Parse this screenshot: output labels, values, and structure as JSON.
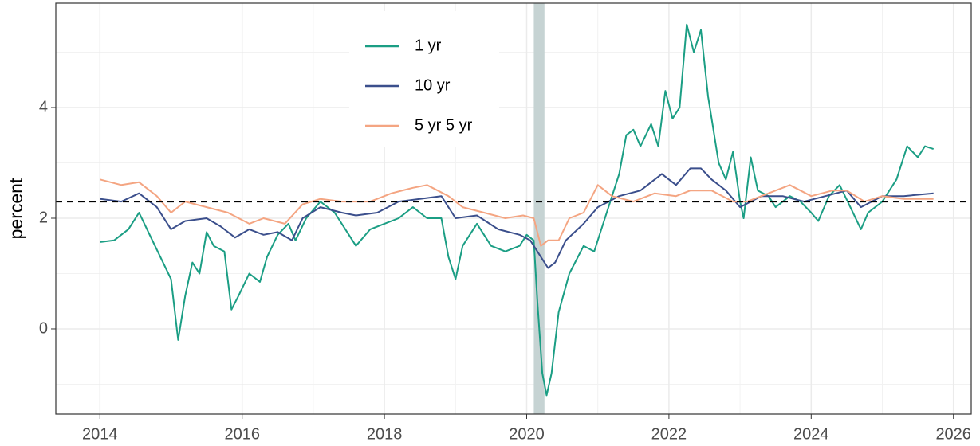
{
  "chart_data": {
    "type": "line",
    "ylabel": "percent",
    "xlim": [
      2013.38,
      2026.25
    ],
    "xticks": [
      2014,
      2016,
      2018,
      2020,
      2022,
      2024,
      2026
    ],
    "ylim": [
      -1.54,
      5.885
    ],
    "yticks": [
      0,
      2,
      4
    ],
    "grid": true,
    "legend": "top",
    "hline": 2.3,
    "hline_color": "#000000",
    "shaded_regions": [
      [
        2020.1,
        2020.25
      ]
    ],
    "shade_color": "#c6d3d3",
    "series": [
      {
        "name": "1 yr",
        "color": "#1b9e84",
        "x": [
          2014.0,
          2014.2,
          2014.4,
          2014.55,
          2014.7,
          2014.85,
          2015.0,
          2015.1,
          2015.2,
          2015.3,
          2015.4,
          2015.5,
          2015.6,
          2015.75,
          2015.85,
          2015.95,
          2016.1,
          2016.25,
          2016.35,
          2016.5,
          2016.65,
          2016.75,
          2016.9,
          2017.1,
          2017.3,
          2017.5,
          2017.6,
          2017.8,
          2018.0,
          2018.2,
          2018.4,
          2018.6,
          2018.8,
          2018.9,
          2019.0,
          2019.1,
          2019.3,
          2019.5,
          2019.7,
          2019.9,
          2020.0,
          2020.1,
          2020.15,
          2020.22,
          2020.28,
          2020.35,
          2020.45,
          2020.6,
          2020.8,
          2020.95,
          2021.1,
          2021.3,
          2021.4,
          2021.5,
          2021.6,
          2021.75,
          2021.85,
          2021.95,
          2022.05,
          2022.15,
          2022.25,
          2022.35,
          2022.45,
          2022.55,
          2022.7,
          2022.8,
          2022.9,
          2023.0,
          2023.05,
          2023.15,
          2023.25,
          2023.4,
          2023.5,
          2023.7,
          2023.85,
          2024.0,
          2024.1,
          2024.25,
          2024.4,
          2024.55,
          2024.7,
          2024.8,
          2025.0,
          2025.2,
          2025.35,
          2025.5,
          2025.6,
          2025.72
        ],
        "values": [
          1.57,
          1.6,
          1.8,
          2.1,
          1.7,
          1.3,
          0.9,
          -0.2,
          0.6,
          1.2,
          1.0,
          1.75,
          1.5,
          1.4,
          0.35,
          0.6,
          1.0,
          0.85,
          1.3,
          1.7,
          1.9,
          1.6,
          2.0,
          2.3,
          2.1,
          1.7,
          1.5,
          1.8,
          1.9,
          2.0,
          2.2,
          2.0,
          2.0,
          1.3,
          0.9,
          1.5,
          1.9,
          1.5,
          1.4,
          1.5,
          1.7,
          1.6,
          0.5,
          -0.8,
          -1.2,
          -0.8,
          0.3,
          1.0,
          1.5,
          1.4,
          2.0,
          2.8,
          3.5,
          3.6,
          3.3,
          3.7,
          3.3,
          4.3,
          3.8,
          4.0,
          5.5,
          5.0,
          5.4,
          4.2,
          3.0,
          2.7,
          3.2,
          2.3,
          2.0,
          3.1,
          2.5,
          2.4,
          2.2,
          2.4,
          2.3,
          2.1,
          1.95,
          2.4,
          2.6,
          2.2,
          1.8,
          2.1,
          2.3,
          2.7,
          3.3,
          3.1,
          3.3,
          3.25
        ]
      },
      {
        "name": "10 yr",
        "color": "#3b4f8c",
        "x": [
          2014.0,
          2014.3,
          2014.55,
          2014.8,
          2015.0,
          2015.2,
          2015.5,
          2015.7,
          2015.9,
          2016.1,
          2016.3,
          2016.5,
          2016.7,
          2016.85,
          2017.1,
          2017.4,
          2017.6,
          2017.9,
          2018.2,
          2018.5,
          2018.8,
          2019.0,
          2019.3,
          2019.6,
          2019.9,
          2020.05,
          2020.2,
          2020.3,
          2020.4,
          2020.55,
          2020.8,
          2021.0,
          2021.3,
          2021.6,
          2021.9,
          2022.1,
          2022.3,
          2022.45,
          2022.6,
          2022.8,
          2023.0,
          2023.3,
          2023.6,
          2023.9,
          2024.2,
          2024.5,
          2024.7,
          2025.0,
          2025.3,
          2025.72
        ],
        "values": [
          2.35,
          2.3,
          2.45,
          2.2,
          1.8,
          1.95,
          2.0,
          1.85,
          1.65,
          1.8,
          1.7,
          1.75,
          1.6,
          2.0,
          2.2,
          2.1,
          2.05,
          2.1,
          2.3,
          2.35,
          2.4,
          2.0,
          2.05,
          1.8,
          1.7,
          1.6,
          1.3,
          1.1,
          1.2,
          1.6,
          1.9,
          2.2,
          2.4,
          2.5,
          2.8,
          2.6,
          2.9,
          2.9,
          2.7,
          2.5,
          2.2,
          2.4,
          2.4,
          2.3,
          2.4,
          2.5,
          2.2,
          2.4,
          2.4,
          2.45
        ]
      },
      {
        "name": "5 yr 5 yr",
        "color": "#f4a582",
        "x": [
          2014.0,
          2014.3,
          2014.55,
          2014.8,
          2015.0,
          2015.2,
          2015.5,
          2015.8,
          2016.1,
          2016.3,
          2016.6,
          2016.85,
          2017.1,
          2017.4,
          2017.8,
          2018.1,
          2018.4,
          2018.6,
          2018.9,
          2019.1,
          2019.4,
          2019.7,
          2019.95,
          2020.1,
          2020.2,
          2020.3,
          2020.45,
          2020.6,
          2020.8,
          2021.0,
          2021.2,
          2021.5,
          2021.8,
          2022.1,
          2022.3,
          2022.6,
          2022.9,
          2023.1,
          2023.4,
          2023.7,
          2024.0,
          2024.3,
          2024.5,
          2024.75,
          2025.0,
          2025.3,
          2025.72
        ],
        "values": [
          2.7,
          2.6,
          2.65,
          2.4,
          2.1,
          2.3,
          2.2,
          2.1,
          1.9,
          2.0,
          1.9,
          2.25,
          2.35,
          2.3,
          2.3,
          2.45,
          2.55,
          2.6,
          2.4,
          2.2,
          2.1,
          2.0,
          2.05,
          2.0,
          1.5,
          1.6,
          1.6,
          2.0,
          2.1,
          2.6,
          2.4,
          2.3,
          2.45,
          2.4,
          2.5,
          2.5,
          2.3,
          2.3,
          2.45,
          2.6,
          2.4,
          2.5,
          2.5,
          2.3,
          2.4,
          2.35,
          2.35
        ]
      }
    ]
  }
}
